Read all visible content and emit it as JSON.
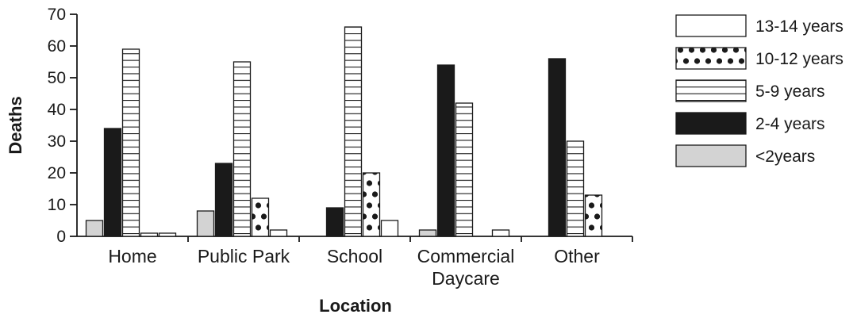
{
  "chart_data": {
    "type": "bar",
    "xlabel": "Location",
    "ylabel": "Deaths",
    "ylim": [
      0,
      70
    ],
    "yticks": [
      0,
      10,
      20,
      30,
      40,
      50,
      60,
      70
    ],
    "categories": [
      [
        "Home"
      ],
      [
        "Public Park"
      ],
      [
        "School"
      ],
      [
        "Commercial",
        "Daycare"
      ],
      [
        "Other"
      ]
    ],
    "series": [
      {
        "name": "<2years",
        "values": [
          5,
          8,
          0,
          2,
          0
        ],
        "pattern": "solid",
        "color": "#d3d3d3"
      },
      {
        "name": "2-4 years",
        "values": [
          34,
          23,
          9,
          54,
          56
        ],
        "pattern": "solid",
        "color": "#1a1a1a"
      },
      {
        "name": "5-9 years",
        "values": [
          59,
          55,
          66,
          42,
          30
        ],
        "pattern": "horizontal-lines",
        "color": "#ffffff"
      },
      {
        "name": "10-12 years",
        "values": [
          1,
          12,
          20,
          0,
          13
        ],
        "pattern": "dots",
        "color": "#ffffff"
      },
      {
        "name": "13-14 years",
        "values": [
          1,
          2,
          5,
          2,
          0
        ],
        "pattern": "solid",
        "color": "#ffffff"
      }
    ],
    "legend_order": [
      "13-14 years",
      "10-12 years",
      "5-9 years",
      "2-4 years",
      "<2years"
    ],
    "legend_position": "right",
    "grid": false
  }
}
